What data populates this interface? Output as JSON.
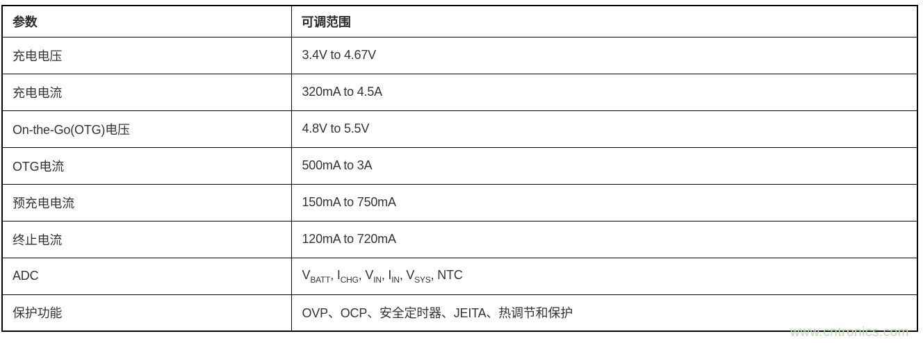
{
  "chart_data": {
    "type": "table",
    "columns": [
      {
        "label": "参数"
      },
      {
        "label": "可调范围"
      }
    ],
    "rows": [
      {
        "param": "充电电压",
        "range": "3.4V to 4.67V"
      },
      {
        "param": "充电电流",
        "range": "320mA to 4.5A"
      },
      {
        "param": "On-the-Go(OTG)电压",
        "range": "4.8V to 5.5V"
      },
      {
        "param": "OTG电流",
        "range": "500mA to 3A"
      },
      {
        "param": "预充电电流",
        "range": "150mA to 750mA"
      },
      {
        "param": "终止电流",
        "range": "120mA to 720mA"
      },
      {
        "param": "ADC",
        "range_rich": [
          {
            "text": "V"
          },
          {
            "sub": "BATT"
          },
          {
            "text": ", I"
          },
          {
            "sub": "CHG"
          },
          {
            "text": ", V"
          },
          {
            "sub": "IN"
          },
          {
            "text": ", I"
          },
          {
            "sub": "IN"
          },
          {
            "text": ", V"
          },
          {
            "sub": "SYS"
          },
          {
            "text": ", NTC"
          }
        ],
        "range_plain": "VBATT, ICHG, VIN, IIN, VSYS, NTC"
      },
      {
        "param": "保护功能",
        "range": "OVP、OCP、安全定时器、JEITA、热调节和保护"
      }
    ]
  },
  "watermark": {
    "text": "www.cntronics.com"
  },
  "colors": {
    "border": "#000000",
    "text": "#333333",
    "background": "#ffffff",
    "watermark": "#b9deb1"
  }
}
